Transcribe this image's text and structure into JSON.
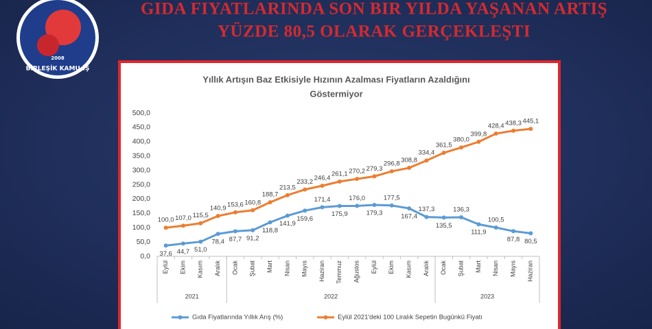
{
  "header": {
    "title_lines": [
      "GIDA FIYATLARINDA SON BIR YILDA YAŞANAN ARTIŞ",
      "YÜZDE 80,5 OLARAK GERÇEKLEŞTI"
    ]
  },
  "logo": {
    "name": "BİRLEŞİK KAMU-İŞ",
    "year": "2008"
  },
  "chart_data": {
    "type": "line",
    "title": [
      "Yıllık Artışın Baz Etkisiyle Hızının Azalması Fiyatların Azaldığını",
      "Göstermiyor"
    ],
    "categories": [
      "Eylül",
      "Ekim",
      "Kasım",
      "Aralık",
      "Ocak",
      "Şubat",
      "Mart",
      "Nisan",
      "Mayıs",
      "Haziran",
      "Temmuz",
      "Ağustos",
      "Eylül",
      "Ekim",
      "Kasım",
      "Aralık",
      "Ocak",
      "Şubat",
      "Mart",
      "Nisan",
      "Mayıs",
      "Haziran"
    ],
    "category_groups": [
      "2021",
      "2021",
      "2021",
      "2021",
      "2022",
      "2022",
      "2022",
      "2022",
      "2022",
      "2022",
      "2022",
      "2022",
      "2022",
      "2022",
      "2022",
      "2022",
      "2023",
      "2023",
      "2023",
      "2023",
      "2023",
      "2023"
    ],
    "series": [
      {
        "name": "Gıda Fiyatlarında Yıllık Arış (%)",
        "color": "#5b9bd5",
        "values": [
          37.6,
          44.7,
          51.0,
          78.4,
          87.7,
          91.2,
          118.8,
          141.9,
          159.6,
          171.4,
          175.9,
          176.0,
          179.3,
          177.5,
          167.4,
          137.3,
          135.5,
          136.3,
          111.9,
          100.5,
          87.8,
          80.5
        ],
        "value_labels": [
          "37,6",
          "44,7",
          "51,0",
          "78,4",
          "87,7",
          "91,2",
          "118,8",
          "141,9",
          "159,6",
          "171,4",
          "175,9",
          "176,0",
          "179,3",
          "177,5",
          "167,4",
          "137,3",
          "135,5",
          "136,3",
          "111,9",
          "100,5",
          "87,8",
          "80,5"
        ]
      },
      {
        "name": "Eylül 2021'deki 100 Liralık Sepetin Bugünkü  Fiyatı",
        "color": "#ed7d31",
        "values": [
          100.0,
          107.0,
          115.5,
          140.9,
          153.6,
          160.8,
          188.7,
          213.5,
          233.2,
          246.4,
          261.1,
          270.2,
          279.3,
          296.8,
          308.8,
          334.4,
          361.5,
          380.0,
          399.8,
          428.4,
          438.3,
          445.1
        ],
        "value_labels": [
          "100,0",
          "107,0",
          "115,5",
          "140,9",
          "153,6",
          "160,8",
          "188,7",
          "213,5",
          "233,2",
          "246,4",
          "261,1",
          "270,2",
          "279,3",
          "296,8",
          "308,8",
          "334,4",
          "361,5",
          "380,0",
          "399,8",
          "428,4",
          "438,3",
          "445,1"
        ]
      }
    ],
    "ylim": [
      0,
      500
    ],
    "yticks": [
      {
        "value": 0,
        "label": "0,0"
      },
      {
        "value": 50,
        "label": "50,0"
      },
      {
        "value": 100,
        "label": "100,0"
      },
      {
        "value": 150,
        "label": "150,0"
      },
      {
        "value": 200,
        "label": "200,0"
      },
      {
        "value": 250,
        "label": "250,0"
      },
      {
        "value": 300,
        "label": "300,0"
      },
      {
        "value": 350,
        "label": "350,0"
      },
      {
        "value": 400,
        "label": "400,0"
      },
      {
        "value": 450,
        "label": "450,0"
      },
      {
        "value": 500,
        "label": "500,0"
      }
    ],
    "grid": false,
    "legend": "bottom"
  }
}
